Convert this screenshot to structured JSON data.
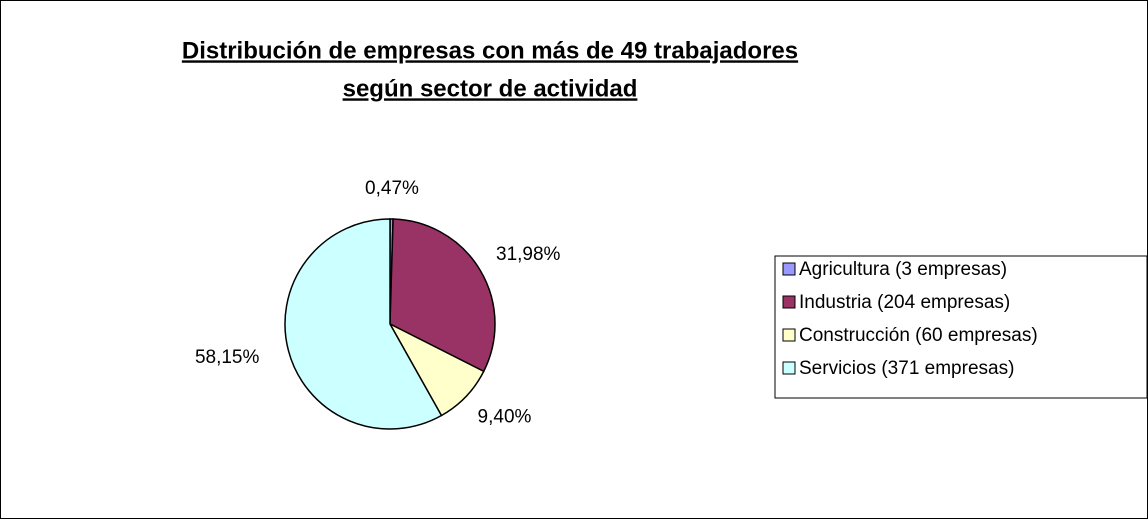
{
  "chart_data": {
    "type": "pie",
    "title": [
      "Distribución de empresas con más de 49 trabajadores",
      "según sector de actividad"
    ],
    "categories": [
      "Agricultura (3 empresas)",
      "Industria (204 empresas)",
      "Construcción (60 empresas)",
      "Servicios (371 empresas)"
    ],
    "values": [
      0.47,
      31.98,
      9.4,
      58.15
    ],
    "value_labels": [
      "0,47%",
      "31,98%",
      "9,40%",
      "58,15%"
    ],
    "colors": [
      "#9999ff",
      "#993366",
      "#ffffcc",
      "#ccffff"
    ],
    "legend": "right"
  }
}
